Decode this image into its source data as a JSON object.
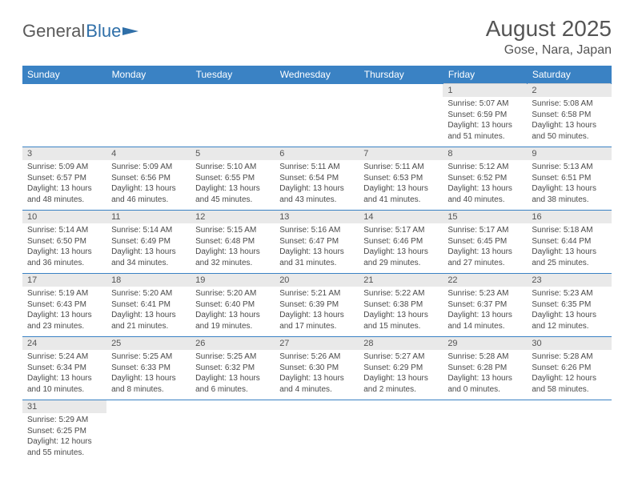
{
  "logo": {
    "part1": "General",
    "part2": "Blue",
    "flag_color": "#2f6fa8"
  },
  "title": "August 2025",
  "location": "Gose, Nara, Japan",
  "colors": {
    "header_bg": "#3a82c4",
    "header_text": "#ffffff",
    "daynum_bg": "#e9e9e9",
    "border": "#3a82c4",
    "text": "#4a4a4a"
  },
  "day_headers": [
    "Sunday",
    "Monday",
    "Tuesday",
    "Wednesday",
    "Thursday",
    "Friday",
    "Saturday"
  ],
  "weeks": [
    [
      null,
      null,
      null,
      null,
      null,
      {
        "n": "1",
        "sr": "Sunrise: 5:07 AM",
        "ss": "Sunset: 6:59 PM",
        "dl1": "Daylight: 13 hours",
        "dl2": "and 51 minutes."
      },
      {
        "n": "2",
        "sr": "Sunrise: 5:08 AM",
        "ss": "Sunset: 6:58 PM",
        "dl1": "Daylight: 13 hours",
        "dl2": "and 50 minutes."
      }
    ],
    [
      {
        "n": "3",
        "sr": "Sunrise: 5:09 AM",
        "ss": "Sunset: 6:57 PM",
        "dl1": "Daylight: 13 hours",
        "dl2": "and 48 minutes."
      },
      {
        "n": "4",
        "sr": "Sunrise: 5:09 AM",
        "ss": "Sunset: 6:56 PM",
        "dl1": "Daylight: 13 hours",
        "dl2": "and 46 minutes."
      },
      {
        "n": "5",
        "sr": "Sunrise: 5:10 AM",
        "ss": "Sunset: 6:55 PM",
        "dl1": "Daylight: 13 hours",
        "dl2": "and 45 minutes."
      },
      {
        "n": "6",
        "sr": "Sunrise: 5:11 AM",
        "ss": "Sunset: 6:54 PM",
        "dl1": "Daylight: 13 hours",
        "dl2": "and 43 minutes."
      },
      {
        "n": "7",
        "sr": "Sunrise: 5:11 AM",
        "ss": "Sunset: 6:53 PM",
        "dl1": "Daylight: 13 hours",
        "dl2": "and 41 minutes."
      },
      {
        "n": "8",
        "sr": "Sunrise: 5:12 AM",
        "ss": "Sunset: 6:52 PM",
        "dl1": "Daylight: 13 hours",
        "dl2": "and 40 minutes."
      },
      {
        "n": "9",
        "sr": "Sunrise: 5:13 AM",
        "ss": "Sunset: 6:51 PM",
        "dl1": "Daylight: 13 hours",
        "dl2": "and 38 minutes."
      }
    ],
    [
      {
        "n": "10",
        "sr": "Sunrise: 5:14 AM",
        "ss": "Sunset: 6:50 PM",
        "dl1": "Daylight: 13 hours",
        "dl2": "and 36 minutes."
      },
      {
        "n": "11",
        "sr": "Sunrise: 5:14 AM",
        "ss": "Sunset: 6:49 PM",
        "dl1": "Daylight: 13 hours",
        "dl2": "and 34 minutes."
      },
      {
        "n": "12",
        "sr": "Sunrise: 5:15 AM",
        "ss": "Sunset: 6:48 PM",
        "dl1": "Daylight: 13 hours",
        "dl2": "and 32 minutes."
      },
      {
        "n": "13",
        "sr": "Sunrise: 5:16 AM",
        "ss": "Sunset: 6:47 PM",
        "dl1": "Daylight: 13 hours",
        "dl2": "and 31 minutes."
      },
      {
        "n": "14",
        "sr": "Sunrise: 5:17 AM",
        "ss": "Sunset: 6:46 PM",
        "dl1": "Daylight: 13 hours",
        "dl2": "and 29 minutes."
      },
      {
        "n": "15",
        "sr": "Sunrise: 5:17 AM",
        "ss": "Sunset: 6:45 PM",
        "dl1": "Daylight: 13 hours",
        "dl2": "and 27 minutes."
      },
      {
        "n": "16",
        "sr": "Sunrise: 5:18 AM",
        "ss": "Sunset: 6:44 PM",
        "dl1": "Daylight: 13 hours",
        "dl2": "and 25 minutes."
      }
    ],
    [
      {
        "n": "17",
        "sr": "Sunrise: 5:19 AM",
        "ss": "Sunset: 6:43 PM",
        "dl1": "Daylight: 13 hours",
        "dl2": "and 23 minutes."
      },
      {
        "n": "18",
        "sr": "Sunrise: 5:20 AM",
        "ss": "Sunset: 6:41 PM",
        "dl1": "Daylight: 13 hours",
        "dl2": "and 21 minutes."
      },
      {
        "n": "19",
        "sr": "Sunrise: 5:20 AM",
        "ss": "Sunset: 6:40 PM",
        "dl1": "Daylight: 13 hours",
        "dl2": "and 19 minutes."
      },
      {
        "n": "20",
        "sr": "Sunrise: 5:21 AM",
        "ss": "Sunset: 6:39 PM",
        "dl1": "Daylight: 13 hours",
        "dl2": "and 17 minutes."
      },
      {
        "n": "21",
        "sr": "Sunrise: 5:22 AM",
        "ss": "Sunset: 6:38 PM",
        "dl1": "Daylight: 13 hours",
        "dl2": "and 15 minutes."
      },
      {
        "n": "22",
        "sr": "Sunrise: 5:23 AM",
        "ss": "Sunset: 6:37 PM",
        "dl1": "Daylight: 13 hours",
        "dl2": "and 14 minutes."
      },
      {
        "n": "23",
        "sr": "Sunrise: 5:23 AM",
        "ss": "Sunset: 6:35 PM",
        "dl1": "Daylight: 13 hours",
        "dl2": "and 12 minutes."
      }
    ],
    [
      {
        "n": "24",
        "sr": "Sunrise: 5:24 AM",
        "ss": "Sunset: 6:34 PM",
        "dl1": "Daylight: 13 hours",
        "dl2": "and 10 minutes."
      },
      {
        "n": "25",
        "sr": "Sunrise: 5:25 AM",
        "ss": "Sunset: 6:33 PM",
        "dl1": "Daylight: 13 hours",
        "dl2": "and 8 minutes."
      },
      {
        "n": "26",
        "sr": "Sunrise: 5:25 AM",
        "ss": "Sunset: 6:32 PM",
        "dl1": "Daylight: 13 hours",
        "dl2": "and 6 minutes."
      },
      {
        "n": "27",
        "sr": "Sunrise: 5:26 AM",
        "ss": "Sunset: 6:30 PM",
        "dl1": "Daylight: 13 hours",
        "dl2": "and 4 minutes."
      },
      {
        "n": "28",
        "sr": "Sunrise: 5:27 AM",
        "ss": "Sunset: 6:29 PM",
        "dl1": "Daylight: 13 hours",
        "dl2": "and 2 minutes."
      },
      {
        "n": "29",
        "sr": "Sunrise: 5:28 AM",
        "ss": "Sunset: 6:28 PM",
        "dl1": "Daylight: 13 hours",
        "dl2": "and 0 minutes."
      },
      {
        "n": "30",
        "sr": "Sunrise: 5:28 AM",
        "ss": "Sunset: 6:26 PM",
        "dl1": "Daylight: 12 hours",
        "dl2": "and 58 minutes."
      }
    ],
    [
      {
        "n": "31",
        "sr": "Sunrise: 5:29 AM",
        "ss": "Sunset: 6:25 PM",
        "dl1": "Daylight: 12 hours",
        "dl2": "and 55 minutes."
      },
      null,
      null,
      null,
      null,
      null,
      null
    ]
  ]
}
